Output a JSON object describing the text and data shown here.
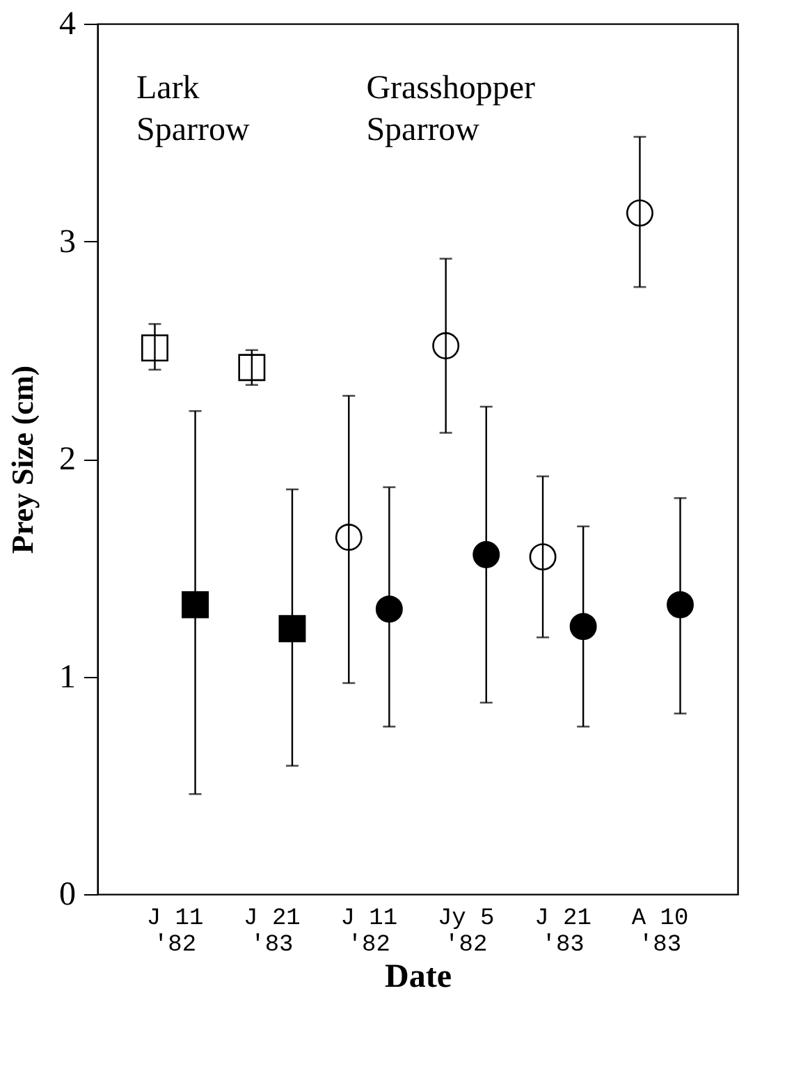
{
  "chart_data": {
    "type": "scatter",
    "xlabel": "Date",
    "ylabel": "Prey Size (cm)",
    "categories": [
      "J 11\n'82",
      "J 21\n'83",
      "J 11\n'82",
      "Jy 5\n'82",
      "J 21\n'83",
      "A 10\n'83"
    ],
    "series": [
      {
        "color": "#ffffff",
        "marker": "square",
        "values": [
          2.51,
          2.42,
          null,
          null,
          null,
          null
        ],
        "errors": [
          [
            2.41,
            2.62
          ],
          [
            2.34,
            2.5
          ],
          null,
          null,
          null,
          null
        ]
      },
      {
        "color": "#000000",
        "marker": "square",
        "values": [
          1.33,
          1.22,
          null,
          null,
          null,
          null
        ],
        "errors": [
          [
            0.46,
            2.22
          ],
          [
            0.59,
            1.86
          ],
          null,
          null,
          null,
          null
        ]
      },
      {
        "color": "#ffffff",
        "marker": "circle",
        "values": [
          null,
          null,
          1.64,
          2.52,
          1.55,
          3.13
        ],
        "errors": [
          null,
          null,
          [
            0.97,
            2.29
          ],
          [
            2.12,
            2.92
          ],
          [
            1.18,
            1.92
          ],
          [
            2.79,
            3.48
          ]
        ]
      },
      {
        "color": "#000000",
        "marker": "circle",
        "values": [
          null,
          null,
          1.31,
          1.56,
          1.23,
          1.33
        ],
        "errors": [
          null,
          null,
          [
            0.77,
            1.87
          ],
          [
            0.88,
            2.24
          ],
          [
            0.77,
            1.69
          ],
          [
            0.83,
            1.82
          ]
        ]
      }
    ],
    "ylim": [
      0,
      4
    ],
    "yticks": [
      0,
      1,
      2,
      3,
      4
    ],
    "grid": false,
    "annotations": [
      "Lark Sparrow",
      "Grasshopper Sparrow"
    ]
  }
}
